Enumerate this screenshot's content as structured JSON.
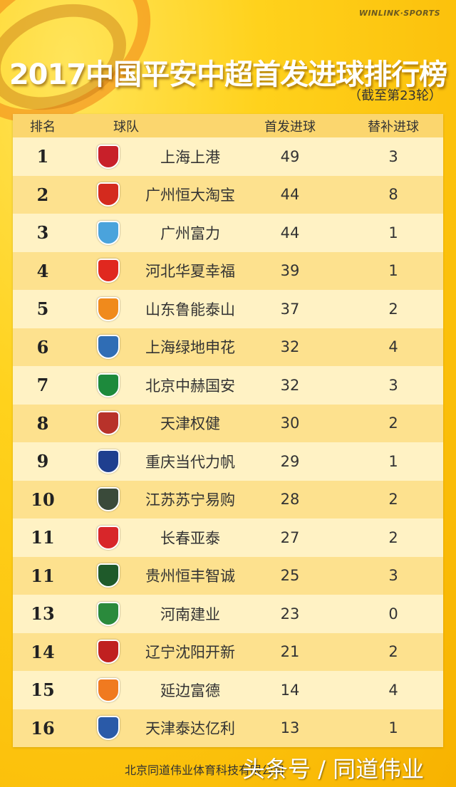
{
  "brand": "WINLINK·SPORTS",
  "title": "2017中国平安中超首发进球排行榜",
  "subtitle": "（截至第23轮）",
  "headers": {
    "rank": "排名",
    "team": "球队",
    "starter": "首发进球",
    "sub": "替补进球"
  },
  "rows": [
    {
      "rank": "1",
      "team": "上海上港",
      "starter": "49",
      "sub": "3",
      "color": "#c8202a"
    },
    {
      "rank": "2",
      "team": "广州恒大淘宝",
      "starter": "44",
      "sub": "8",
      "color": "#d42a1e"
    },
    {
      "rank": "3",
      "team": "广州富力",
      "starter": "44",
      "sub": "1",
      "color": "#4aa3dc"
    },
    {
      "rank": "4",
      "team": "河北华夏幸福",
      "starter": "39",
      "sub": "1",
      "color": "#e0281f"
    },
    {
      "rank": "5",
      "team": "山东鲁能泰山",
      "starter": "37",
      "sub": "2",
      "color": "#f08a1c"
    },
    {
      "rank": "6",
      "team": "上海绿地申花",
      "starter": "32",
      "sub": "4",
      "color": "#2f6db5"
    },
    {
      "rank": "7",
      "team": "北京中赫国安",
      "starter": "32",
      "sub": "3",
      "color": "#1d8a3c"
    },
    {
      "rank": "8",
      "team": "天津权健",
      "starter": "30",
      "sub": "2",
      "color": "#b8322a"
    },
    {
      "rank": "9",
      "team": "重庆当代力帆",
      "starter": "29",
      "sub": "1",
      "color": "#1f3f8f"
    },
    {
      "rank": "10",
      "team": "江苏苏宁易购",
      "starter": "28",
      "sub": "2",
      "color": "#3a4a3a"
    },
    {
      "rank": "11",
      "team": "长春亚泰",
      "starter": "27",
      "sub": "2",
      "color": "#d8262a"
    },
    {
      "rank": "11",
      "team": "贵州恒丰智诚",
      "starter": "25",
      "sub": "3",
      "color": "#1f5a2a"
    },
    {
      "rank": "13",
      "team": "河南建业",
      "starter": "23",
      "sub": "0",
      "color": "#2a8a3c"
    },
    {
      "rank": "14",
      "team": "辽宁沈阳开新",
      "starter": "21",
      "sub": "2",
      "color": "#c02020"
    },
    {
      "rank": "15",
      "team": "延边富德",
      "starter": "14",
      "sub": "4",
      "color": "#f07a20"
    },
    {
      "rank": "16",
      "team": "天津泰达亿利",
      "starter": "13",
      "sub": "1",
      "color": "#2a5aa8"
    }
  ],
  "footer": "北京同道伟业体育科技有限公司",
  "watermark": "头条号 / 同道伟业"
}
